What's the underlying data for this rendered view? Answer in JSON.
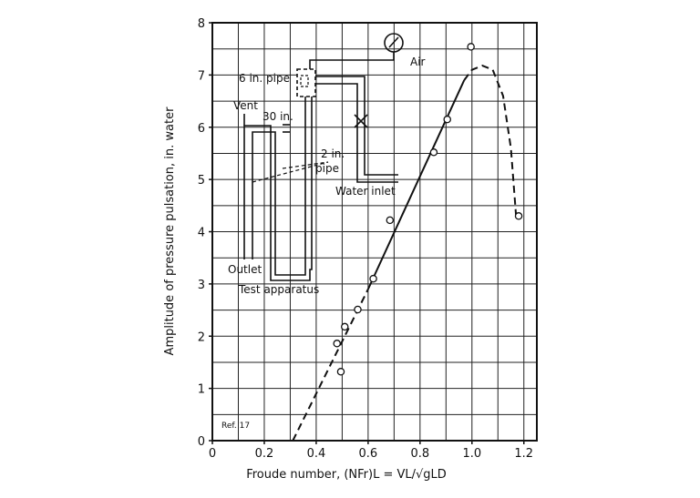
{
  "chart_data": {
    "type": "scatter",
    "xlabel": "Froude number, (NFr)L = VL/√gLD",
    "ylabel": "Amplitude of pressure pulsation, in. water",
    "xlim": [
      0,
      1.25
    ],
    "ylim": [
      0,
      8
    ],
    "xticks": [
      0,
      0.2,
      0.4,
      0.6,
      0.8,
      {
        "value": 1,
        "label": "1.0"
      },
      1.2
    ],
    "yticks": [
      0,
      1,
      2,
      3,
      4,
      5,
      6,
      7,
      8
    ],
    "xgrid": [
      0,
      0.1,
      0.2,
      0.3,
      0.4,
      0.5,
      0.6,
      0.7,
      0.8,
      0.9,
      1.0,
      1.1,
      1.2,
      1.25
    ],
    "ygrid": [
      0,
      0.5,
      1,
      1.5,
      2,
      2.5,
      3,
      3.5,
      4,
      4.5,
      5,
      5.5,
      6,
      6.5,
      7,
      7.5,
      8
    ],
    "grid": true,
    "color": "#111",
    "x": [
      0.48,
      0.495,
      0.51,
      0.56,
      0.62,
      0.684,
      0.853,
      0.905,
      0.996,
      1.18
    ],
    "values": [
      1.86,
      1.32,
      2.18,
      2.51,
      3.1,
      4.22,
      5.52,
      6.15,
      7.54,
      4.3
    ],
    "lines": [
      {
        "style": "dashed",
        "x": [
          0.31,
          0.6
        ],
        "values": [
          0,
          2.9
        ]
      },
      {
        "style": "solid",
        "x": [
          0.6,
          0.97
        ],
        "values": [
          2.9,
          6.9
        ]
      },
      {
        "style": "dashed",
        "x": [
          0.97,
          1.0,
          1.04,
          1.08,
          1.12,
          1.15,
          1.17
        ],
        "values": [
          6.9,
          7.1,
          7.18,
          7.1,
          6.6,
          5.6,
          4.3
        ]
      }
    ],
    "annotations": [
      "6 in. pipe",
      "Air",
      "Vent",
      "30 in.",
      "2 in.",
      "pipe",
      "Water inlet",
      "Outlet",
      "Test apparatus",
      "Ref. 17"
    ]
  }
}
